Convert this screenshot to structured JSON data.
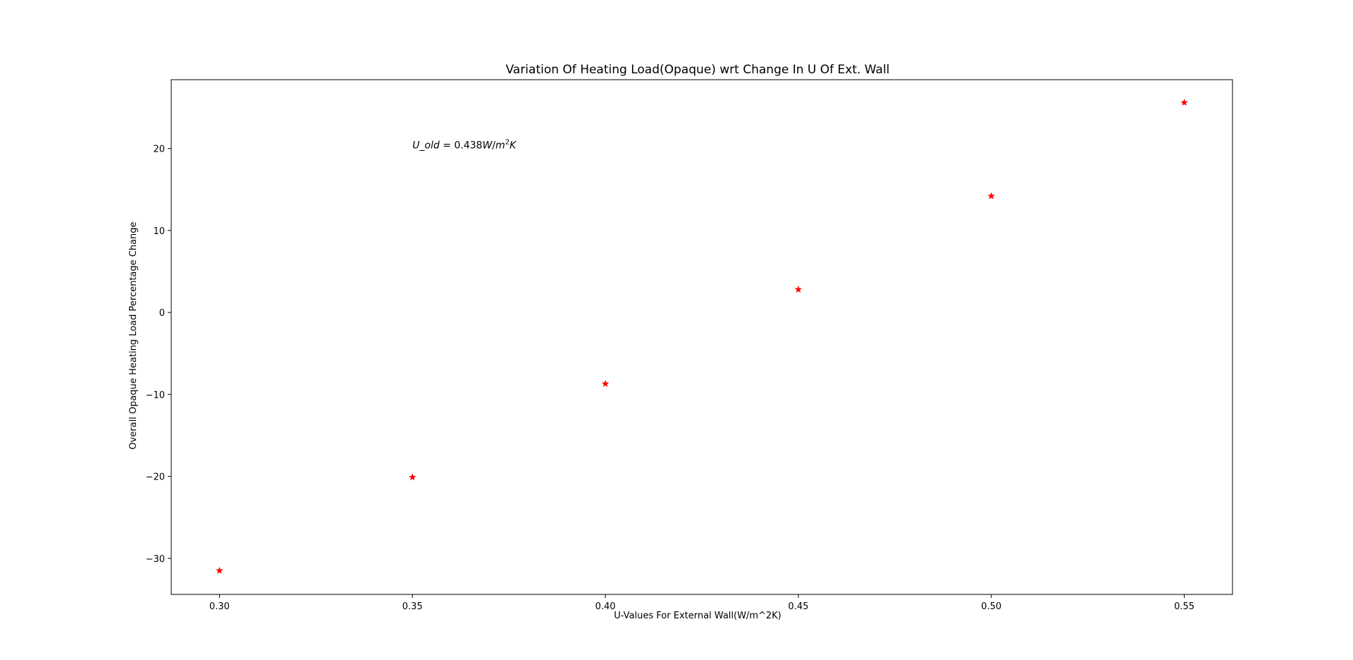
{
  "chart_data": {
    "type": "scatter",
    "title": "Variation Of Heating Load(Opaque) wrt Change In U Of Ext. Wall",
    "xlabel": "U-Values For External Wall(W/m^2K)",
    "ylabel": "Overall Opaque Heating Load Percentage Change",
    "x": [
      0.3,
      0.35,
      0.4,
      0.45,
      0.5,
      0.55
    ],
    "y": [
      -31.5,
      -20.1,
      -8.7,
      2.8,
      14.2,
      25.6
    ],
    "xlim": [
      0.2875,
      0.5625
    ],
    "ylim": [
      -34.4,
      28.4
    ],
    "xticks": [
      0.3,
      0.35,
      0.4,
      0.45,
      0.5,
      0.55
    ],
    "xtick_labels": [
      "0.30",
      "0.35",
      "0.40",
      "0.45",
      "0.50",
      "0.55"
    ],
    "yticks": [
      -30,
      -20,
      -10,
      0,
      10,
      20
    ],
    "ytick_labels": [
      "−30",
      "−20",
      "−10",
      "0",
      "10",
      "20"
    ],
    "marker": "star",
    "marker_color": "#ff0000",
    "grid": false,
    "annotation": {
      "x": 0.35,
      "y": 20,
      "lhs": "U_old",
      "eq": " = 0.438",
      "unit_w": "W",
      "unit_slash": "/",
      "unit_m": "m",
      "unit_exp": "2",
      "unit_k": "K"
    }
  }
}
